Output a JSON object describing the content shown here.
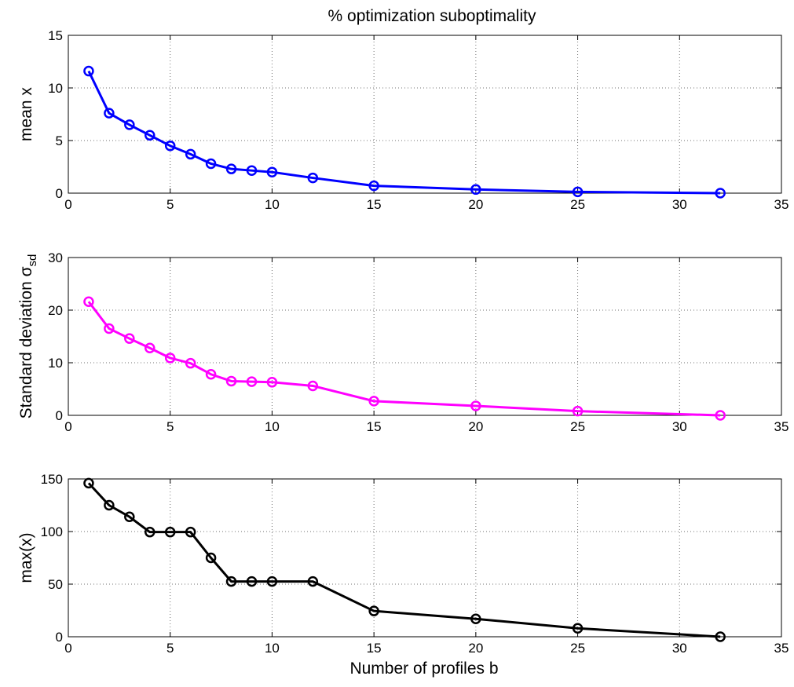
{
  "figure": {
    "title": "% optimization suboptimality",
    "xlabel": "Number of profiles b"
  },
  "chart_data": [
    {
      "type": "line",
      "ylabel": "mean x",
      "color": "#0000ff",
      "marker": "circle",
      "xlim": [
        0,
        35
      ],
      "ylim": [
        0,
        15
      ],
      "xticks": [
        0,
        5,
        10,
        15,
        20,
        25,
        30,
        35
      ],
      "yticks": [
        0,
        5,
        10,
        15
      ],
      "grid": true,
      "series": [
        {
          "x": [
            1,
            2,
            3,
            4,
            5,
            6,
            7,
            8,
            9,
            10,
            12,
            15,
            20,
            25,
            32
          ],
          "y": [
            11.6,
            7.6,
            6.5,
            5.5,
            4.5,
            3.7,
            2.8,
            2.3,
            2.15,
            2.0,
            1.45,
            0.7,
            0.35,
            0.12,
            0.0
          ]
        }
      ]
    },
    {
      "type": "line",
      "ylabel": "Standard deviation σ",
      "ylabel_sub": "sd",
      "color": "#ff00ff",
      "marker": "circle",
      "xlim": [
        0,
        35
      ],
      "ylim": [
        0,
        30
      ],
      "xticks": [
        0,
        5,
        10,
        15,
        20,
        25,
        30,
        35
      ],
      "yticks": [
        0,
        10,
        20,
        30
      ],
      "grid": true,
      "series": [
        {
          "x": [
            1,
            2,
            3,
            4,
            5,
            6,
            7,
            8,
            9,
            10,
            12,
            15,
            20,
            25,
            32
          ],
          "y": [
            21.6,
            16.5,
            14.6,
            12.8,
            10.9,
            9.9,
            7.8,
            6.5,
            6.4,
            6.3,
            5.6,
            2.7,
            1.8,
            0.8,
            0.0
          ]
        }
      ]
    },
    {
      "type": "line",
      "ylabel": "max(x)",
      "color": "#000000",
      "marker": "circle",
      "xlim": [
        0,
        35
      ],
      "ylim": [
        0,
        150
      ],
      "xticks": [
        0,
        5,
        10,
        15,
        20,
        25,
        30,
        35
      ],
      "yticks": [
        0,
        50,
        100,
        150
      ],
      "grid": true,
      "series": [
        {
          "x": [
            1,
            2,
            3,
            4,
            5,
            6,
            7,
            8,
            9,
            10,
            12,
            15,
            20,
            25,
            32
          ],
          "y": [
            146,
            125,
            114,
            99.5,
            99.5,
            99.5,
            75,
            52.5,
            52.5,
            52.5,
            52.5,
            24.5,
            17,
            8,
            0
          ]
        }
      ]
    }
  ]
}
